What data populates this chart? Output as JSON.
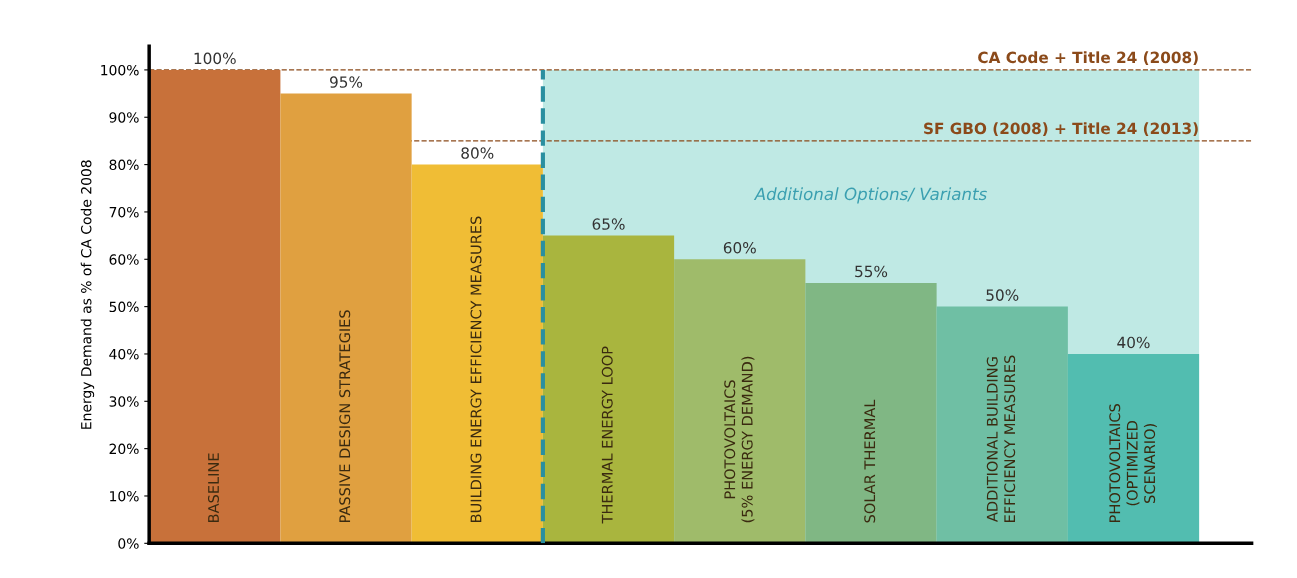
{
  "chart_data": {
    "type": "bar",
    "ylabel": "Energy Demand as % of CA Code 2008",
    "categories": [
      "BASELINE",
      "PASSIVE DESIGN STRATEGIES",
      "BUILDING ENERGY EFFICIENCY MEASURES",
      "THERMAL ENERGY LOOP",
      "PHOTOVOLTAICS\n(5% ENERGY DEMAND)",
      "SOLAR THERMAL",
      "ADDITIONAL BUILDING\nEFFICIENCY MEASURES",
      "PHOTOVOLTAICS\n(OPTIMIZED\nSCENARIO)"
    ],
    "values": [
      100,
      95,
      80,
      65,
      60,
      55,
      50,
      40
    ],
    "value_labels": [
      "100%",
      "95%",
      "80%",
      "65%",
      "60%",
      "55%",
      "50%",
      "40%"
    ],
    "colors": [
      "#c8713a",
      "#e0a040",
      "#f0bd35",
      "#a9b53e",
      "#9fbb6a",
      "#80b784",
      "#6fbfa4",
      "#52bdb0"
    ],
    "ylim": [
      0,
      105
    ],
    "yticks": [
      {
        "value": 0,
        "label": "0%"
      },
      {
        "value": 10,
        "label": "10%"
      },
      {
        "value": 20,
        "label": "20%"
      },
      {
        "value": 30,
        "label": "30%"
      },
      {
        "value": 40,
        "label": "40%"
      },
      {
        "value": 50,
        "label": "50%"
      },
      {
        "value": 60,
        "label": "60%"
      },
      {
        "value": 70,
        "label": "70%"
      },
      {
        "value": 80,
        "label": "80%"
      },
      {
        "value": 90,
        "label": "90%"
      },
      {
        "value": 100,
        "label": "100%"
      }
    ],
    "tick_labels": "y",
    "grid": false,
    "legend": false,
    "ref_lines": [
      {
        "axis": "y",
        "value": 100,
        "label": "CA Code + Title 24 (2008)",
        "color": "#8b4a1a",
        "line_style": "dashed"
      },
      {
        "axis": "y",
        "value": 85,
        "label": "SF GBO (2008) + Title 24 (2013)",
        "color": "#8b4a1a",
        "line_style": "dashed"
      },
      {
        "axis": "x",
        "value": "THERMAL ENERGY LOOP",
        "color": "#2a8fa0",
        "line_style": "dashed"
      }
    ],
    "bands": [
      {
        "axis": "x",
        "from": "THERMAL ENERGY LOOP",
        "to": "PHOTOVOLTAICS\n(OPTIMIZED\nSCENARIO)",
        "label": "Additional Options/ Variants",
        "color": "#bfe9e4"
      }
    ]
  }
}
